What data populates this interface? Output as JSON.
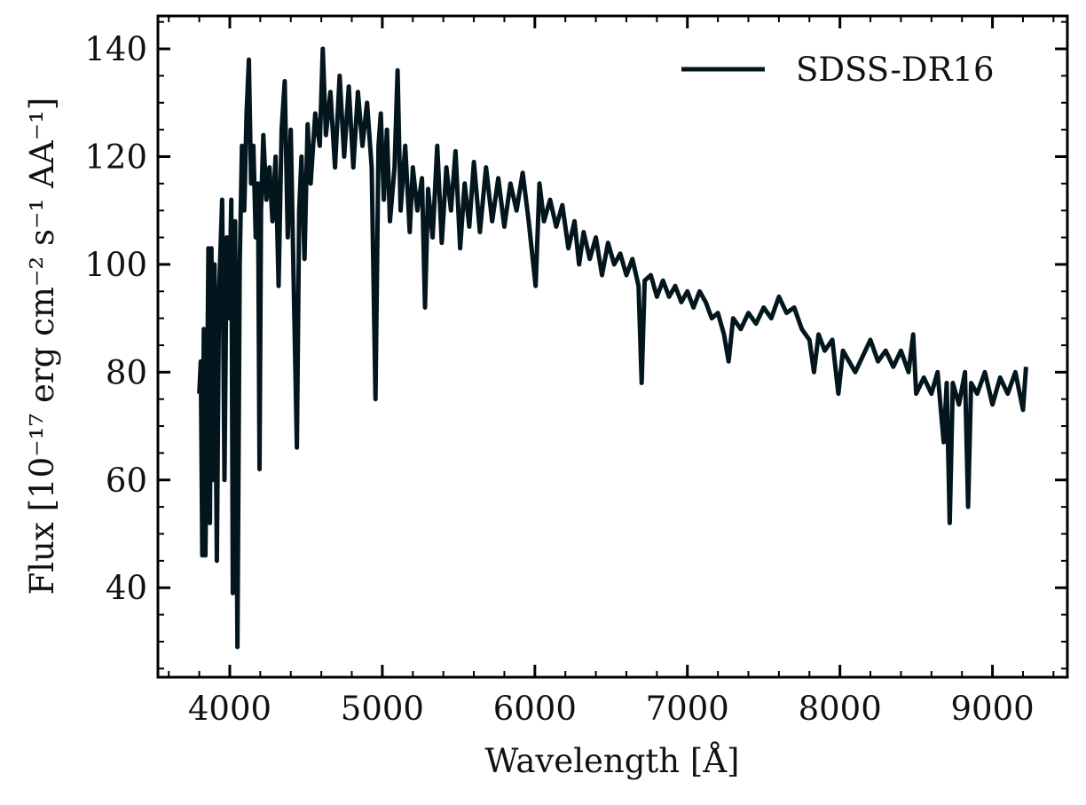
{
  "chart_data": {
    "type": "line",
    "xlabel": "Wavelength [Å]",
    "ylabel": "Flux [10⁻¹⁷ erg cm⁻² s⁻¹ AA⁻¹]",
    "x": [
      3800,
      3810,
      3820,
      3830,
      3840,
      3850,
      3860,
      3870,
      3880,
      3890,
      3900,
      3915,
      3930,
      3950,
      3965,
      3980,
      3995,
      4010,
      4020,
      4035,
      4050,
      4065,
      4080,
      4095,
      4110,
      4125,
      4140,
      4155,
      4170,
      4185,
      4195,
      4205,
      4220,
      4240,
      4260,
      4280,
      4300,
      4320,
      4340,
      4360,
      4380,
      4400,
      4420,
      4440,
      4455,
      4470,
      4490,
      4510,
      4530,
      4560,
      4590,
      4610,
      4630,
      4660,
      4690,
      4720,
      4750,
      4780,
      4810,
      4840,
      4870,
      4900,
      4930,
      4955,
      4975,
      4990,
      5010,
      5030,
      5050,
      5080,
      5100,
      5120,
      5150,
      5180,
      5200,
      5230,
      5260,
      5280,
      5300,
      5330,
      5360,
      5390,
      5420,
      5450,
      5480,
      5510,
      5540,
      5570,
      5600,
      5640,
      5680,
      5720,
      5760,
      5800,
      5840,
      5880,
      5920,
      5960,
      6005,
      6030,
      6060,
      6100,
      6140,
      6180,
      6220,
      6260,
      6290,
      6320,
      6360,
      6400,
      6440,
      6480,
      6520,
      6560,
      6600,
      6640,
      6680,
      6700,
      6720,
      6760,
      6800,
      6840,
      6880,
      6920,
      6960,
      7000,
      7040,
      7080,
      7120,
      7160,
      7200,
      7240,
      7270,
      7300,
      7350,
      7400,
      7450,
      7500,
      7550,
      7600,
      7650,
      7700,
      7750,
      7800,
      7830,
      7860,
      7900,
      7950,
      7990,
      8020,
      8060,
      8100,
      8150,
      8200,
      8250,
      8300,
      8350,
      8400,
      8450,
      8480,
      8500,
      8550,
      8600,
      8640,
      8680,
      8700,
      8720,
      8740,
      8780,
      8820,
      8840,
      8860,
      8900,
      8950,
      9000,
      9050,
      9100,
      9150,
      9200,
      9220
    ],
    "series": [
      {
        "name": "SDSS-DR16",
        "color": "#03161d",
        "values": [
          76,
          82,
          46,
          88,
          46,
          70,
          103,
          52,
          103,
          60,
          100,
          45,
          95,
          112,
          60,
          105,
          90,
          112,
          39,
          108,
          29,
          100,
          122,
          110,
          128,
          138,
          115,
          122,
          105,
          115,
          62,
          110,
          124,
          112,
          118,
          108,
          120,
          96,
          125,
          134,
          105,
          125,
          95,
          66,
          110,
          120,
          101,
          126,
          115,
          128,
          122,
          140,
          124,
          132,
          118,
          135,
          120,
          133,
          118,
          132,
          122,
          130,
          118,
          75,
          122,
          128,
          112,
          125,
          108,
          118,
          136,
          110,
          122,
          106,
          118,
          110,
          116,
          92,
          114,
          105,
          122,
          104,
          118,
          110,
          121,
          103,
          115,
          107,
          119,
          106,
          118,
          108,
          116,
          107,
          115,
          110,
          117,
          108,
          96,
          115,
          108,
          112,
          107,
          111,
          103,
          108,
          100,
          106,
          101,
          105,
          98,
          104,
          100,
          102,
          98,
          101,
          96,
          78,
          97,
          98,
          94,
          97,
          94,
          96,
          93,
          95,
          92,
          95,
          93,
          90,
          91,
          87,
          82,
          90,
          88,
          91,
          89,
          92,
          90,
          94,
          91,
          92,
          88,
          86,
          80,
          87,
          84,
          86,
          76,
          84,
          82,
          80,
          83,
          86,
          82,
          84,
          81,
          84,
          80,
          87,
          76,
          79,
          76,
          80,
          67,
          78,
          52,
          78,
          74,
          80,
          55,
          78,
          76,
          80,
          74,
          79,
          76,
          80,
          73,
          81
        ]
      }
    ],
    "xlim": [
      3529,
      9491
    ],
    "ylim": [
      23.4,
      146.1
    ],
    "xticks": [
      4000,
      5000,
      6000,
      7000,
      8000,
      9000
    ],
    "yticks": [
      40,
      60,
      80,
      100,
      120,
      140
    ],
    "xminorticks": [
      3600,
      3800,
      4200,
      4400,
      4600,
      4800,
      5200,
      5400,
      5600,
      5800,
      6200,
      6400,
      6600,
      6800,
      7200,
      7400,
      7600,
      7800,
      8200,
      8400,
      8600,
      8800,
      9200,
      9400
    ],
    "yminorticks": [
      25,
      30,
      35,
      45,
      50,
      55,
      65,
      70,
      75,
      85,
      90,
      95,
      105,
      110,
      115,
      125,
      130,
      135,
      145
    ],
    "legend": "upper right"
  }
}
